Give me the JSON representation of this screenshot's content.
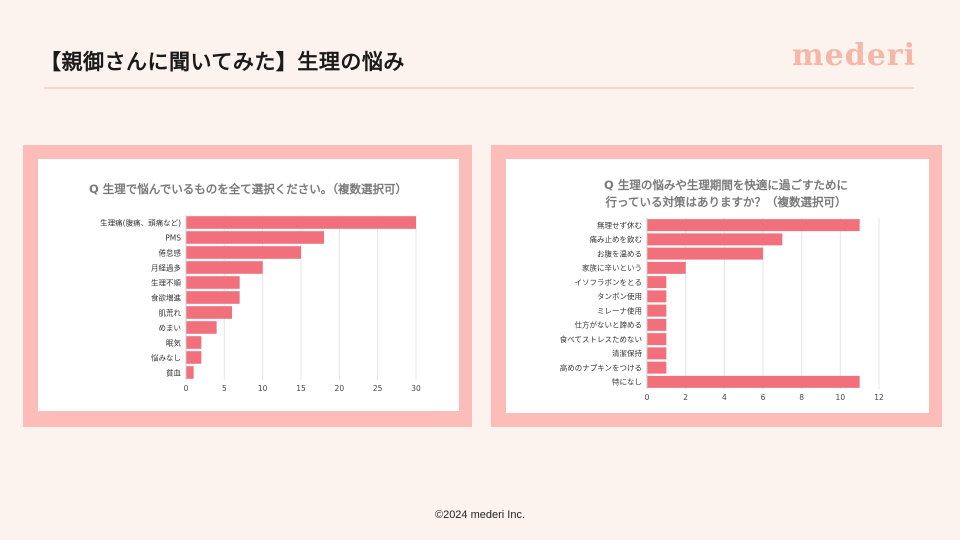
{
  "slide": {
    "title": "【親御さんに聞いてみた】生理の悩み",
    "logo": "mederi",
    "footer": "©2024 mederi Inc."
  },
  "colors": {
    "background": "#fcf3ee",
    "card_border": "#fcbdb8",
    "bar": "#f2707c",
    "logo": "#f4b7a8"
  },
  "chart_data": [
    {
      "type": "bar",
      "orientation": "horizontal",
      "title": "Q 生理で悩んでいるものを全て選択ください。（複数選択可）",
      "categories": [
        "生理痛(腹痛、頭痛など)",
        "PMS",
        "倦怠感",
        "月経過多",
        "生理不順",
        "食欲増進",
        "肌荒れ",
        "めまい",
        "眠気",
        "悩みなし",
        "貧血"
      ],
      "values": [
        30,
        18,
        15,
        10,
        7,
        7,
        6,
        4,
        2,
        2,
        1
      ],
      "xlim": [
        0,
        30
      ],
      "xticks": [
        0,
        5,
        10,
        15,
        20,
        25,
        30
      ],
      "grid": true,
      "legend": "none"
    },
    {
      "type": "bar",
      "orientation": "horizontal",
      "title": "Q 生理の悩みや生理期間を快適に過ごすために\n行っている対策はありますか？（複数選択可）",
      "categories": [
        "無理せず休む",
        "痛み止めを飲む",
        "お腹を温める",
        "家族に辛いという",
        "イソフラボンをとる",
        "タンポン使用",
        "ミレーナ使用",
        "仕方がないと諦める",
        "食べてストレスためない",
        "清潔保持",
        "高めのナプキンをつける",
        "特になし"
      ],
      "values": [
        11,
        7,
        6,
        2,
        1,
        1,
        1,
        1,
        1,
        1,
        1,
        11
      ],
      "xlim": [
        0,
        12
      ],
      "xticks": [
        0,
        2,
        4,
        6,
        8,
        10,
        12
      ],
      "grid": true,
      "legend": "none"
    }
  ]
}
